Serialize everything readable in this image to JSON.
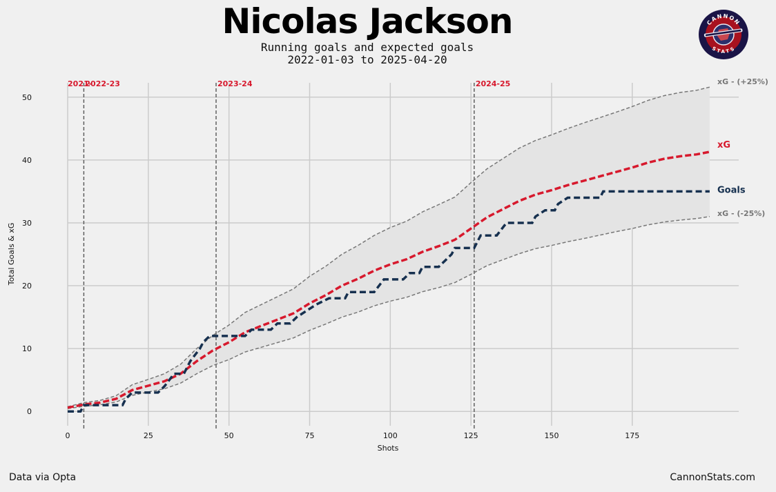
{
  "header": {
    "title": "Nicolas Jackson",
    "subtitle_line1": "Running goals and expected goals",
    "subtitle_line2": "2022-01-03 to 2025-04-20"
  },
  "logo": {
    "top_text": "CANNON",
    "bottom_text": "STATS"
  },
  "footer": {
    "source": "Data via Opta",
    "site": "CannonStats.com"
  },
  "colors": {
    "background": "#f0f0f0",
    "xg": "#d7192d",
    "goals": "#16304f",
    "band": "#777777",
    "band_fill": "#e4e4e4",
    "grid": "#cbcbcb",
    "season_line": "#555555"
  },
  "chart_data": {
    "type": "line",
    "title": "Nicolas Jackson",
    "xlabel": "Shots",
    "ylabel": "Total Goals & xG",
    "xlim": [
      -6,
      208
    ],
    "ylim": [
      -2.5,
      52.5
    ],
    "xticks": [
      0,
      25,
      50,
      75,
      100,
      125,
      150,
      175
    ],
    "yticks": [
      0,
      10,
      20,
      30,
      40,
      50
    ],
    "season_markers": [
      {
        "shot": 5,
        "label": "2022-23",
        "label_partial": "2021-"
      },
      {
        "shot": 46,
        "label": "2023-24"
      },
      {
        "shot": 126,
        "label": "2024-25"
      }
    ],
    "series": [
      {
        "name": "xG",
        "end_label": "xG",
        "points": [
          [
            0,
            0.6
          ],
          [
            5,
            1.1
          ],
          [
            10,
            1.4
          ],
          [
            15,
            2.0
          ],
          [
            20,
            3.4
          ],
          [
            25,
            4.1
          ],
          [
            30,
            4.8
          ],
          [
            35,
            6.0
          ],
          [
            40,
            8.0
          ],
          [
            45,
            9.7
          ],
          [
            50,
            11.0
          ],
          [
            55,
            12.6
          ],
          [
            60,
            13.6
          ],
          [
            65,
            14.6
          ],
          [
            70,
            15.6
          ],
          [
            75,
            17.2
          ],
          [
            80,
            18.5
          ],
          [
            85,
            20.0
          ],
          [
            90,
            21.1
          ],
          [
            95,
            22.4
          ],
          [
            100,
            23.4
          ],
          [
            105,
            24.2
          ],
          [
            110,
            25.4
          ],
          [
            115,
            26.3
          ],
          [
            120,
            27.3
          ],
          [
            125,
            29.1
          ],
          [
            130,
            30.9
          ],
          [
            135,
            32.2
          ],
          [
            140,
            33.5
          ],
          [
            145,
            34.5
          ],
          [
            150,
            35.2
          ],
          [
            155,
            36.0
          ],
          [
            160,
            36.7
          ],
          [
            165,
            37.4
          ],
          [
            170,
            38.1
          ],
          [
            175,
            38.8
          ],
          [
            180,
            39.6
          ],
          [
            185,
            40.2
          ],
          [
            190,
            40.6
          ],
          [
            195,
            40.9
          ],
          [
            199,
            41.3
          ]
        ]
      },
      {
        "name": "Goals",
        "end_label": "Goals",
        "points": [
          [
            0,
            0
          ],
          [
            4,
            0
          ],
          [
            5,
            1
          ],
          [
            17,
            1
          ],
          [
            18,
            2
          ],
          [
            20,
            3
          ],
          [
            28,
            3
          ],
          [
            30,
            4
          ],
          [
            33,
            6
          ],
          [
            36,
            6
          ],
          [
            38,
            8
          ],
          [
            41,
            10
          ],
          [
            42,
            11
          ],
          [
            44,
            12
          ],
          [
            55,
            12
          ],
          [
            57,
            13
          ],
          [
            63,
            13
          ],
          [
            65,
            14
          ],
          [
            69,
            14
          ],
          [
            71,
            15
          ],
          [
            74,
            16
          ],
          [
            77,
            17
          ],
          [
            81,
            18
          ],
          [
            86,
            18
          ],
          [
            87,
            19
          ],
          [
            95,
            19
          ],
          [
            98,
            21
          ],
          [
            104,
            21
          ],
          [
            106,
            22
          ],
          [
            109,
            22
          ],
          [
            110,
            23
          ],
          [
            115,
            23
          ],
          [
            117,
            24
          ],
          [
            119,
            25
          ],
          [
            120,
            26
          ],
          [
            126,
            26
          ],
          [
            128,
            28
          ],
          [
            133,
            28
          ],
          [
            136,
            30
          ],
          [
            144,
            30
          ],
          [
            145,
            31
          ],
          [
            148,
            32
          ],
          [
            151,
            32
          ],
          [
            152,
            33
          ],
          [
            155,
            34
          ],
          [
            165,
            34
          ],
          [
            166,
            35
          ],
          [
            199,
            35
          ]
        ]
      },
      {
        "name": "xG - (+25%)",
        "end_label": "xG - (+25%)",
        "points": [
          [
            0,
            0.75
          ],
          [
            5,
            1.4
          ],
          [
            10,
            1.75
          ],
          [
            15,
            2.5
          ],
          [
            20,
            4.25
          ],
          [
            25,
            5.1
          ],
          [
            30,
            6.0
          ],
          [
            35,
            7.5
          ],
          [
            40,
            10.0
          ],
          [
            45,
            12.1
          ],
          [
            50,
            13.75
          ],
          [
            55,
            15.75
          ],
          [
            60,
            17.0
          ],
          [
            65,
            18.25
          ],
          [
            70,
            19.5
          ],
          [
            75,
            21.5
          ],
          [
            80,
            23.1
          ],
          [
            85,
            25.0
          ],
          [
            90,
            26.4
          ],
          [
            95,
            28.0
          ],
          [
            100,
            29.25
          ],
          [
            105,
            30.25
          ],
          [
            110,
            31.75
          ],
          [
            115,
            32.9
          ],
          [
            120,
            34.1
          ],
          [
            125,
            36.4
          ],
          [
            130,
            38.6
          ],
          [
            135,
            40.25
          ],
          [
            140,
            41.9
          ],
          [
            145,
            43.1
          ],
          [
            150,
            44.0
          ],
          [
            155,
            45.0
          ],
          [
            160,
            45.9
          ],
          [
            165,
            46.75
          ],
          [
            170,
            47.6
          ],
          [
            175,
            48.5
          ],
          [
            180,
            49.5
          ],
          [
            185,
            50.25
          ],
          [
            190,
            50.75
          ],
          [
            195,
            51.1
          ],
          [
            199,
            51.6
          ]
        ]
      },
      {
        "name": "xG - (-25%)",
        "end_label": "xG - (-25%)",
        "points": [
          [
            0,
            0.45
          ],
          [
            5,
            0.8
          ],
          [
            10,
            1.05
          ],
          [
            15,
            1.5
          ],
          [
            20,
            2.55
          ],
          [
            25,
            3.1
          ],
          [
            30,
            3.6
          ],
          [
            35,
            4.5
          ],
          [
            40,
            6.0
          ],
          [
            45,
            7.3
          ],
          [
            50,
            8.25
          ],
          [
            55,
            9.45
          ],
          [
            60,
            10.2
          ],
          [
            65,
            10.95
          ],
          [
            70,
            11.7
          ],
          [
            75,
            12.9
          ],
          [
            80,
            13.9
          ],
          [
            85,
            15.0
          ],
          [
            90,
            15.8
          ],
          [
            95,
            16.8
          ],
          [
            100,
            17.55
          ],
          [
            105,
            18.15
          ],
          [
            110,
            19.05
          ],
          [
            115,
            19.7
          ],
          [
            120,
            20.5
          ],
          [
            125,
            21.8
          ],
          [
            130,
            23.2
          ],
          [
            135,
            24.15
          ],
          [
            140,
            25.1
          ],
          [
            145,
            25.9
          ],
          [
            150,
            26.4
          ],
          [
            155,
            27.0
          ],
          [
            160,
            27.5
          ],
          [
            165,
            28.05
          ],
          [
            170,
            28.6
          ],
          [
            175,
            29.1
          ],
          [
            180,
            29.7
          ],
          [
            185,
            30.15
          ],
          [
            190,
            30.45
          ],
          [
            195,
            30.7
          ],
          [
            199,
            31.0
          ]
        ]
      }
    ]
  }
}
